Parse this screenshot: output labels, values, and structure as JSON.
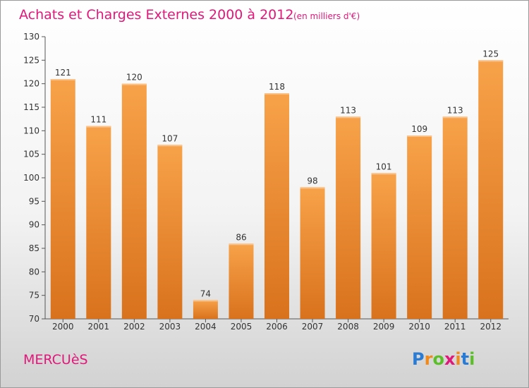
{
  "chart_data": {
    "type": "bar",
    "title": "Achats et Charges Externes 2000 à 2012",
    "subtitle": "(en milliers d'€)",
    "categories": [
      "2000",
      "2001",
      "2002",
      "2003",
      "2004",
      "2005",
      "2006",
      "2007",
      "2008",
      "2009",
      "2010",
      "2011",
      "2012"
    ],
    "values": [
      121,
      111,
      120,
      107,
      74,
      86,
      118,
      98,
      113,
      101,
      109,
      113,
      125
    ],
    "ylim": [
      70,
      130
    ],
    "yticks": [
      70,
      75,
      80,
      85,
      90,
      95,
      100,
      105,
      110,
      115,
      120,
      125,
      130
    ],
    "xlabel": "",
    "ylabel": "",
    "grid": false,
    "bar_color_top": "#f7a24a",
    "bar_color_bottom": "#d9721c"
  },
  "footer": {
    "commune": "MERCUèS",
    "logo_letters": [
      "P",
      "r",
      "o",
      "x",
      "i",
      "t",
      "i"
    ],
    "logo_colors": [
      "#2a7bd4",
      "#f08a1c",
      "#5bbf2a",
      "#e0187a",
      "#f08a1c",
      "#2a7bd4",
      "#5bbf2a"
    ]
  },
  "colors": {
    "accent": "#e0187a"
  }
}
